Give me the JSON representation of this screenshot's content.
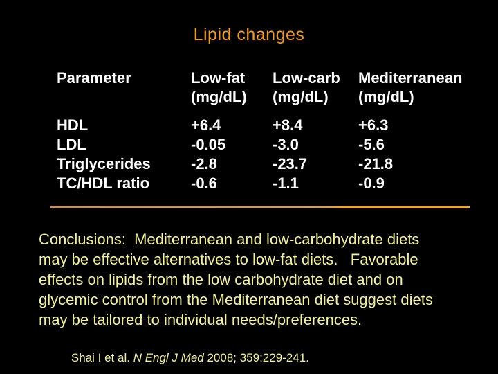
{
  "title": "Lipid changes",
  "table": {
    "param_header": "Parameter",
    "columns": [
      {
        "name": "Low-fat",
        "unit": "(mg/dL)"
      },
      {
        "name": "Low-carb",
        "unit": "(mg/dL)"
      },
      {
        "name": "Mediterranean",
        "unit": "(mg/dL)"
      }
    ],
    "rows": [
      {
        "label": "HDL",
        "values": [
          "+6.4",
          "+8.4",
          "+6.3"
        ]
      },
      {
        "label": "LDL",
        "values": [
          "-0.05",
          "-3.0",
          "-5.6"
        ]
      },
      {
        "label": "Triglycerides",
        "values": [
          "-2.8",
          "-23.7",
          "-21.8"
        ]
      },
      {
        "label": "TC/HDL ratio",
        "values": [
          "-0.6",
          "-1.1",
          "-0.9"
        ]
      }
    ]
  },
  "conclusions": {
    "text": "Conclusions:  Mediterranean and low-carbohydrate diets may be effective alternatives to low-fat diets.   Favorable effects on lipids from the low carbohydrate diet and on glycemic control from the Mediterranean diet suggest diets may be tailored to individual needs/preferences."
  },
  "citation": {
    "authors": "Shai I et al. ",
    "journal": "N Engl J Med",
    "details": " 2008; 359:229-241."
  },
  "colors": {
    "background": "#000000",
    "title_orange": "#E99C3E",
    "table_text": "#FFFFFF",
    "body_yellow": "#F3F0A6",
    "divider_tan": "#C79F70",
    "divider_orange": "#E9A63E"
  }
}
